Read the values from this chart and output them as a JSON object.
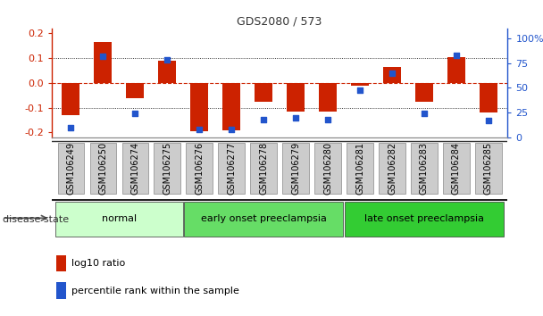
{
  "title": "GDS2080 / 573",
  "samples": [
    "GSM106249",
    "GSM106250",
    "GSM106274",
    "GSM106275",
    "GSM106276",
    "GSM106277",
    "GSM106278",
    "GSM106279",
    "GSM106280",
    "GSM106281",
    "GSM106282",
    "GSM106283",
    "GSM106284",
    "GSM106285"
  ],
  "log10_ratio": [
    -0.13,
    0.165,
    -0.06,
    0.088,
    -0.195,
    -0.19,
    -0.075,
    -0.115,
    -0.115,
    -0.01,
    0.065,
    -0.075,
    0.105,
    -0.12
  ],
  "percentile_rank": [
    10,
    82,
    24,
    78,
    8,
    8,
    18,
    20,
    18,
    48,
    65,
    24,
    83,
    17
  ],
  "bar_color": "#cc2200",
  "dot_color": "#2255cc",
  "ylim_left": [
    -0.22,
    0.22
  ],
  "ylim_right": [
    0,
    110
  ],
  "yticks_left": [
    -0.2,
    -0.1,
    0.0,
    0.1,
    0.2
  ],
  "yticks_right": [
    0,
    25,
    50,
    75,
    100
  ],
  "ytick_labels_right": [
    "0",
    "25",
    "50",
    "75",
    "100%"
  ],
  "zero_line_color": "#cc2200",
  "grid_color": "#000000",
  "groups": [
    {
      "label": "normal",
      "start": 0,
      "end": 3,
      "color": "#ccffcc"
    },
    {
      "label": "early onset preeclampsia",
      "start": 4,
      "end": 8,
      "color": "#66dd66"
    },
    {
      "label": "late onset preeclampsia",
      "start": 9,
      "end": 13,
      "color": "#33cc33"
    }
  ],
  "disease_state_label": "disease state",
  "legend_bar_label": "log10 ratio",
  "legend_dot_label": "percentile rank within the sample",
  "bar_width": 0.55,
  "tick_bg_color": "#cccccc",
  "tick_border_color": "#888888",
  "background_color": "#ffffff",
  "plot_bg_color": "#ffffff",
  "spine_color": "#888888"
}
